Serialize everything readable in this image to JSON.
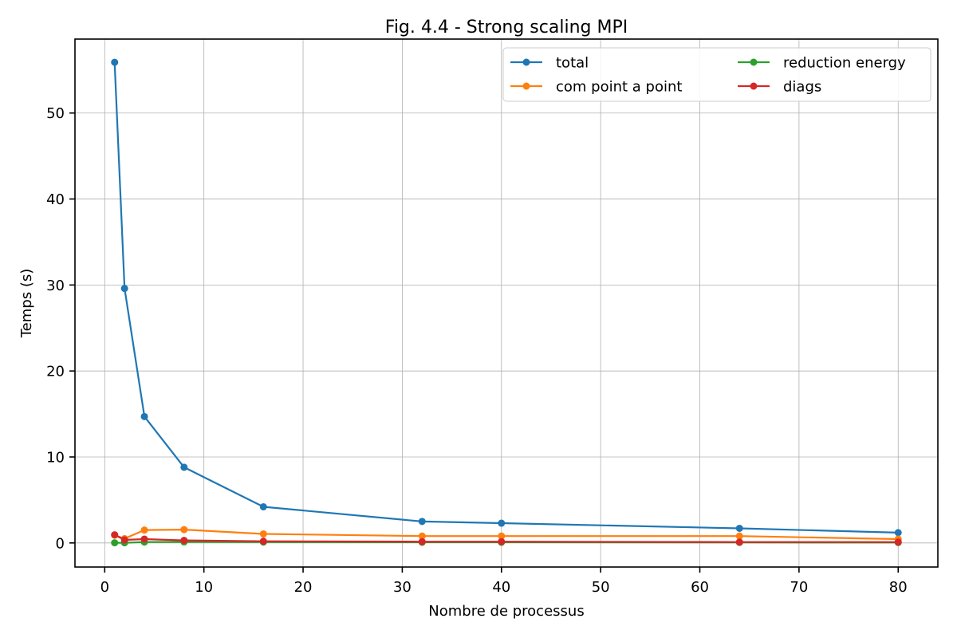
{
  "chart_data": {
    "type": "line",
    "title": "Fig. 4.4 - Strong scaling MPI",
    "xlabel": "Nombre de processus",
    "ylabel": "Temps (s)",
    "x": [
      1,
      2,
      4,
      8,
      16,
      32,
      40,
      64,
      80
    ],
    "xlim": [
      -3,
      84
    ],
    "ylim": [
      -2.8,
      58.6
    ],
    "xticks": [
      0,
      10,
      20,
      30,
      40,
      50,
      60,
      70,
      80
    ],
    "yticks": [
      0,
      10,
      20,
      30,
      40,
      50
    ],
    "grid": true,
    "legend_position": "top-right",
    "legend_columns": 2,
    "series": [
      {
        "name": "total",
        "color": "#1f77b4",
        "values": [
          55.9,
          29.6,
          14.7,
          8.8,
          4.2,
          2.5,
          2.3,
          1.7,
          1.2
        ]
      },
      {
        "name": "com point a point",
        "color": "#ff7f0e",
        "values": [
          0.9,
          0.5,
          1.5,
          1.55,
          1.05,
          0.8,
          0.8,
          0.8,
          0.45
        ]
      },
      {
        "name": "reduction energy",
        "color": "#2ca02c",
        "values": [
          0.02,
          0.02,
          0.1,
          0.12,
          0.1,
          0.08,
          0.08,
          0.06,
          0.05
        ]
      },
      {
        "name": "diags",
        "color": "#d62728",
        "values": [
          0.95,
          0.35,
          0.45,
          0.3,
          0.2,
          0.15,
          0.15,
          0.1,
          0.1
        ]
      }
    ]
  }
}
